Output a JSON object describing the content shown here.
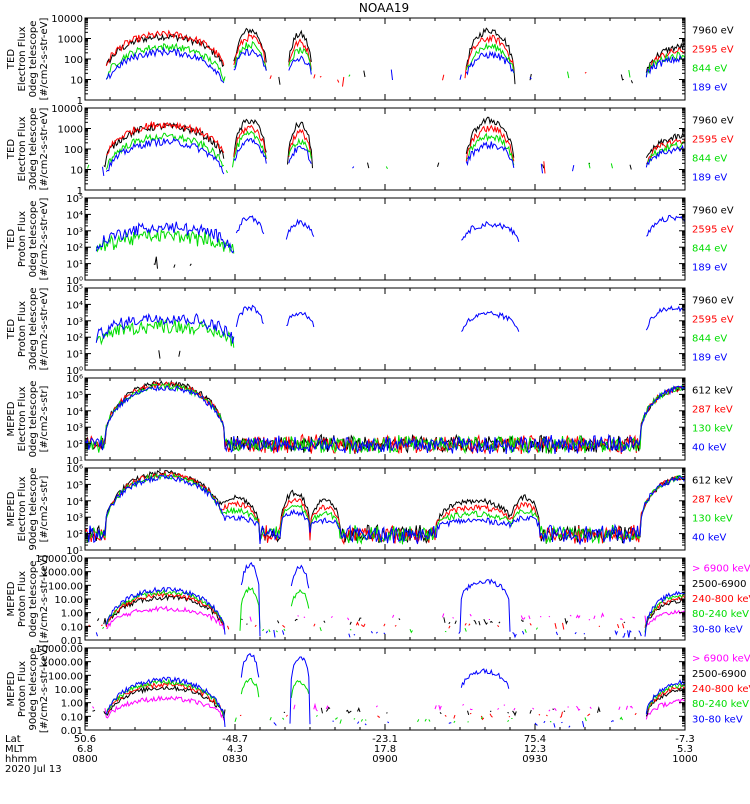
{
  "title": "NOAA19",
  "colors": {
    "black": "#000000",
    "red": "#ff0000",
    "green": "#00dd00",
    "blue": "#0000ff",
    "magenta": "#ff00ff"
  },
  "time_axis": {
    "row_labels": [
      "Lat",
      "MLT",
      "hhmm"
    ],
    "ticks": [
      {
        "lat": "50.6",
        "mlt": "6.8",
        "hhmm": "0800"
      },
      {
        "lat": "-48.7",
        "mlt": "4.3",
        "hhmm": "0830"
      },
      {
        "lat": "-23.1",
        "mlt": "17.8",
        "hhmm": "0900"
      },
      {
        "lat": "75.4",
        "mlt": "12.3",
        "hhmm": "0930"
      },
      {
        "lat": "-7.3",
        "mlt": "5.3",
        "hhmm": "1000"
      }
    ],
    "date": "2020 Jul 13"
  },
  "chart_data": [
    {
      "type": "line",
      "panel": "ted-electron-0deg",
      "ylabel": [
        "TED",
        "Electron Flux",
        "0deg telescope",
        "[#/cm2-s-str-eV]"
      ],
      "ylim": [
        1,
        10000
      ],
      "log": true,
      "y_ticks": [
        {
          "v": 1,
          "label": "1"
        },
        {
          "v": 10,
          "label": "10"
        },
        {
          "v": 100,
          "label": "100"
        },
        {
          "v": 1000,
          "label": "1000"
        },
        {
          "v": 10000,
          "label": "10000"
        }
      ],
      "series": [
        {
          "name": "7960 eV",
          "color": "#000000"
        },
        {
          "name": "2595 eV",
          "color": "#ff0000"
        },
        {
          "name": "844 eV",
          "color": "#00dd00"
        },
        {
          "name": "189 eV",
          "color": "#0000ff"
        }
      ]
    },
    {
      "type": "line",
      "panel": "ted-electron-30deg",
      "ylabel": [
        "TED",
        "Electron Flux",
        "30deg telescope",
        "[#/cm2-s-str-eV]"
      ],
      "ylim": [
        1,
        10000
      ],
      "log": true,
      "y_ticks": [
        {
          "v": 1,
          "label": "1"
        },
        {
          "v": 10,
          "label": "10"
        },
        {
          "v": 100,
          "label": "100"
        },
        {
          "v": 1000,
          "label": "1000"
        },
        {
          "v": 10000,
          "label": "10000"
        }
      ],
      "series": [
        {
          "name": "7960 eV",
          "color": "#000000"
        },
        {
          "name": "2595 eV",
          "color": "#ff0000"
        },
        {
          "name": "844 eV",
          "color": "#00dd00"
        },
        {
          "name": "189 eV",
          "color": "#0000ff"
        }
      ]
    },
    {
      "type": "line",
      "panel": "ted-proton-0deg",
      "ylabel": [
        "TED",
        "Proton Flux",
        "0deg telescope",
        "[#/cm2-s-str-eV]"
      ],
      "ylim": [
        1,
        100000
      ],
      "log": true,
      "y_ticks": [
        {
          "v": 1,
          "label": "10⁰"
        },
        {
          "v": 10,
          "label": "10¹"
        },
        {
          "v": 100,
          "label": "10²"
        },
        {
          "v": 1000,
          "label": "10³"
        },
        {
          "v": 10000,
          "label": "10⁴"
        },
        {
          "v": 100000,
          "label": "10⁵"
        }
      ],
      "series": [
        {
          "name": "7960 eV",
          "color": "#000000"
        },
        {
          "name": "2595 eV",
          "color": "#ff0000"
        },
        {
          "name": "844 eV",
          "color": "#00dd00"
        },
        {
          "name": "189 eV",
          "color": "#0000ff"
        }
      ]
    },
    {
      "type": "line",
      "panel": "ted-proton-30deg",
      "ylabel": [
        "TED",
        "Proton Flux",
        "30deg telescope",
        "[#/cm2-s-str-eV]"
      ],
      "ylim": [
        1,
        100000
      ],
      "log": true,
      "y_ticks": [
        {
          "v": 1,
          "label": "10⁰"
        },
        {
          "v": 10,
          "label": "10¹"
        },
        {
          "v": 100,
          "label": "10²"
        },
        {
          "v": 1000,
          "label": "10³"
        },
        {
          "v": 10000,
          "label": "10⁴"
        },
        {
          "v": 100000,
          "label": "10⁵"
        }
      ],
      "series": [
        {
          "name": "7960 eV",
          "color": "#000000"
        },
        {
          "name": "2595 eV",
          "color": "#ff0000"
        },
        {
          "name": "844 eV",
          "color": "#00dd00"
        },
        {
          "name": "189 eV",
          "color": "#0000ff"
        }
      ]
    },
    {
      "type": "line",
      "panel": "meped-electron-0deg",
      "ylabel": [
        "MEPED",
        "Electron Flux",
        "0deg telescope",
        "[#/cm2-s-str]"
      ],
      "ylim": [
        10,
        1000000
      ],
      "log": true,
      "y_ticks": [
        {
          "v": 10,
          "label": "10¹"
        },
        {
          "v": 100,
          "label": "10²"
        },
        {
          "v": 1000,
          "label": "10³"
        },
        {
          "v": 10000,
          "label": "10⁴"
        },
        {
          "v": 100000,
          "label": "10⁵"
        },
        {
          "v": 1000000,
          "label": "10⁶"
        }
      ],
      "series": [
        {
          "name": "612 keV",
          "color": "#000000"
        },
        {
          "name": "287 keV",
          "color": "#ff0000"
        },
        {
          "name": "130 keV",
          "color": "#00dd00"
        },
        {
          "name": "40 keV",
          "color": "#0000ff"
        }
      ]
    },
    {
      "type": "line",
      "panel": "meped-electron-90deg",
      "ylabel": [
        "MEPED",
        "Electron Flux",
        "90deg telescope",
        "[#/cm2-s-str]"
      ],
      "ylim": [
        10,
        1000000
      ],
      "log": true,
      "y_ticks": [
        {
          "v": 10,
          "label": "10¹"
        },
        {
          "v": 100,
          "label": "10²"
        },
        {
          "v": 1000,
          "label": "10³"
        },
        {
          "v": 10000,
          "label": "10⁴"
        },
        {
          "v": 100000,
          "label": "10⁵"
        },
        {
          "v": 1000000,
          "label": "10⁶"
        }
      ],
      "series": [
        {
          "name": "612 keV",
          "color": "#000000"
        },
        {
          "name": "287 keV",
          "color": "#ff0000"
        },
        {
          "name": "130 keV",
          "color": "#00dd00"
        },
        {
          "name": "40 keV",
          "color": "#0000ff"
        }
      ]
    },
    {
      "type": "line",
      "panel": "meped-proton-0deg",
      "ylabel": [
        "MEPED",
        "Proton Flux",
        "0deg telescope",
        "[#/cm2-s-str-keV]"
      ],
      "ylim": [
        0.01,
        10000
      ],
      "log": true,
      "y_ticks": [
        {
          "v": 0.01,
          "label": "0.01"
        },
        {
          "v": 0.1,
          "label": "0.10"
        },
        {
          "v": 1,
          "label": "1.00"
        },
        {
          "v": 10,
          "label": "10.00"
        },
        {
          "v": 100,
          "label": "100.00"
        },
        {
          "v": 1000,
          "label": "1000.00"
        },
        {
          "v": 10000,
          "label": "10000.00"
        }
      ],
      "series": [
        {
          "name": "> 6900 keV",
          "color": "#ff00ff"
        },
        {
          "name": "2500-6900",
          "color": "#000000"
        },
        {
          "name": "240-800 keV",
          "color": "#ff0000"
        },
        {
          "name": "80-240 keV",
          "color": "#00dd00"
        },
        {
          "name": "30-80 keV",
          "color": "#0000ff"
        }
      ]
    },
    {
      "type": "line",
      "panel": "meped-proton-90deg",
      "ylabel": [
        "MEPED",
        "Proton Flux",
        "90deg telescope",
        "[#/cm2-s-str-keV]"
      ],
      "ylim": [
        0.01,
        10000
      ],
      "log": true,
      "y_ticks": [
        {
          "v": 0.01,
          "label": "0.01"
        },
        {
          "v": 0.1,
          "label": "0.10"
        },
        {
          "v": 1,
          "label": "1.00"
        },
        {
          "v": 10,
          "label": "10.00"
        },
        {
          "v": 100,
          "label": "100.00"
        },
        {
          "v": 1000,
          "label": "1000.00"
        },
        {
          "v": 10000,
          "label": "10000.00"
        }
      ],
      "series": [
        {
          "name": "> 6900 keV",
          "color": "#ff00ff"
        },
        {
          "name": "2500-6900",
          "color": "#000000"
        },
        {
          "name": "240-800 keV",
          "color": "#ff0000"
        },
        {
          "name": "80-240 keV",
          "color": "#00dd00"
        },
        {
          "name": "30-80 keV",
          "color": "#0000ff"
        }
      ]
    }
  ]
}
